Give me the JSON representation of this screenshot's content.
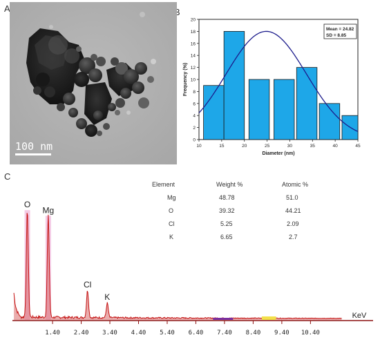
{
  "panels": {
    "a": "A",
    "b": "B",
    "c": "C"
  },
  "tem": {
    "scale_bar_label": "100 nm"
  },
  "chart_data": [
    {
      "type": "bar",
      "title": "",
      "xlabel": "Diameter (nm)",
      "ylabel": "Frequency (%)",
      "xlim": [
        10,
        45
      ],
      "ylim": [
        0,
        20
      ],
      "xticks": [
        10,
        15,
        20,
        25,
        30,
        35,
        40,
        45
      ],
      "yticks": [
        0,
        2,
        4,
        6,
        8,
        10,
        12,
        14,
        16,
        18,
        20
      ],
      "bins": [
        {
          "from": 11,
          "to": 15.5,
          "value": 9
        },
        {
          "from": 15.5,
          "to": 20,
          "value": 18
        },
        {
          "from": 21,
          "to": 25.5,
          "value": 10
        },
        {
          "from": 26.5,
          "to": 31,
          "value": 10
        },
        {
          "from": 31.5,
          "to": 36,
          "value": 12
        },
        {
          "from": 36.5,
          "to": 41,
          "value": 6
        },
        {
          "from": 41.5,
          "to": 45,
          "value": 4
        }
      ],
      "fit": {
        "type": "normal",
        "mean": 24.82,
        "sd": 8.85,
        "peak": 18
      },
      "stats_box": {
        "mean_label": "Mean = 24.82",
        "sd_label": "SD     = 8.85"
      },
      "colors": {
        "bar": "#1ea7e8",
        "bar_edge": "#1a1a1a",
        "fit": "#1c1c8c"
      }
    },
    {
      "type": "line",
      "title": "",
      "xlabel": "KeV",
      "xlim": [
        0,
        11.5
      ],
      "xticks": [
        "1.40",
        "2.40",
        "3.40",
        "4.40",
        "5.40",
        "6.40",
        "7.40",
        "8.40",
        "9.40",
        "10.40"
      ],
      "x_tick_values": [
        1.4,
        2.4,
        3.4,
        4.4,
        5.4,
        6.4,
        7.4,
        8.4,
        9.4,
        10.4
      ],
      "peaks": [
        {
          "label": "O",
          "energy": 0.52,
          "height": 0.95
        },
        {
          "label": "Mg",
          "energy": 1.25,
          "height": 0.9
        },
        {
          "label": "Cl",
          "energy": 2.62,
          "height": 0.24
        },
        {
          "label": "K",
          "energy": 3.31,
          "height": 0.13
        }
      ],
      "colors": {
        "spectrum": "#c41212",
        "fill": "#f0b8dc",
        "baseline": "#8c1010"
      },
      "table": {
        "headers": [
          "Element",
          "Weight %",
          "Atomic %"
        ],
        "rows": [
          {
            "element": "Mg",
            "weight": "48.78",
            "atomic": "51.0"
          },
          {
            "element": "O",
            "weight": "39.32",
            "atomic": "44.21"
          },
          {
            "element": "Cl",
            "weight": "5.25",
            "atomic": "2.09"
          },
          {
            "element": "K",
            "weight": "6.65",
            "atomic": "2.7"
          }
        ]
      }
    }
  ]
}
